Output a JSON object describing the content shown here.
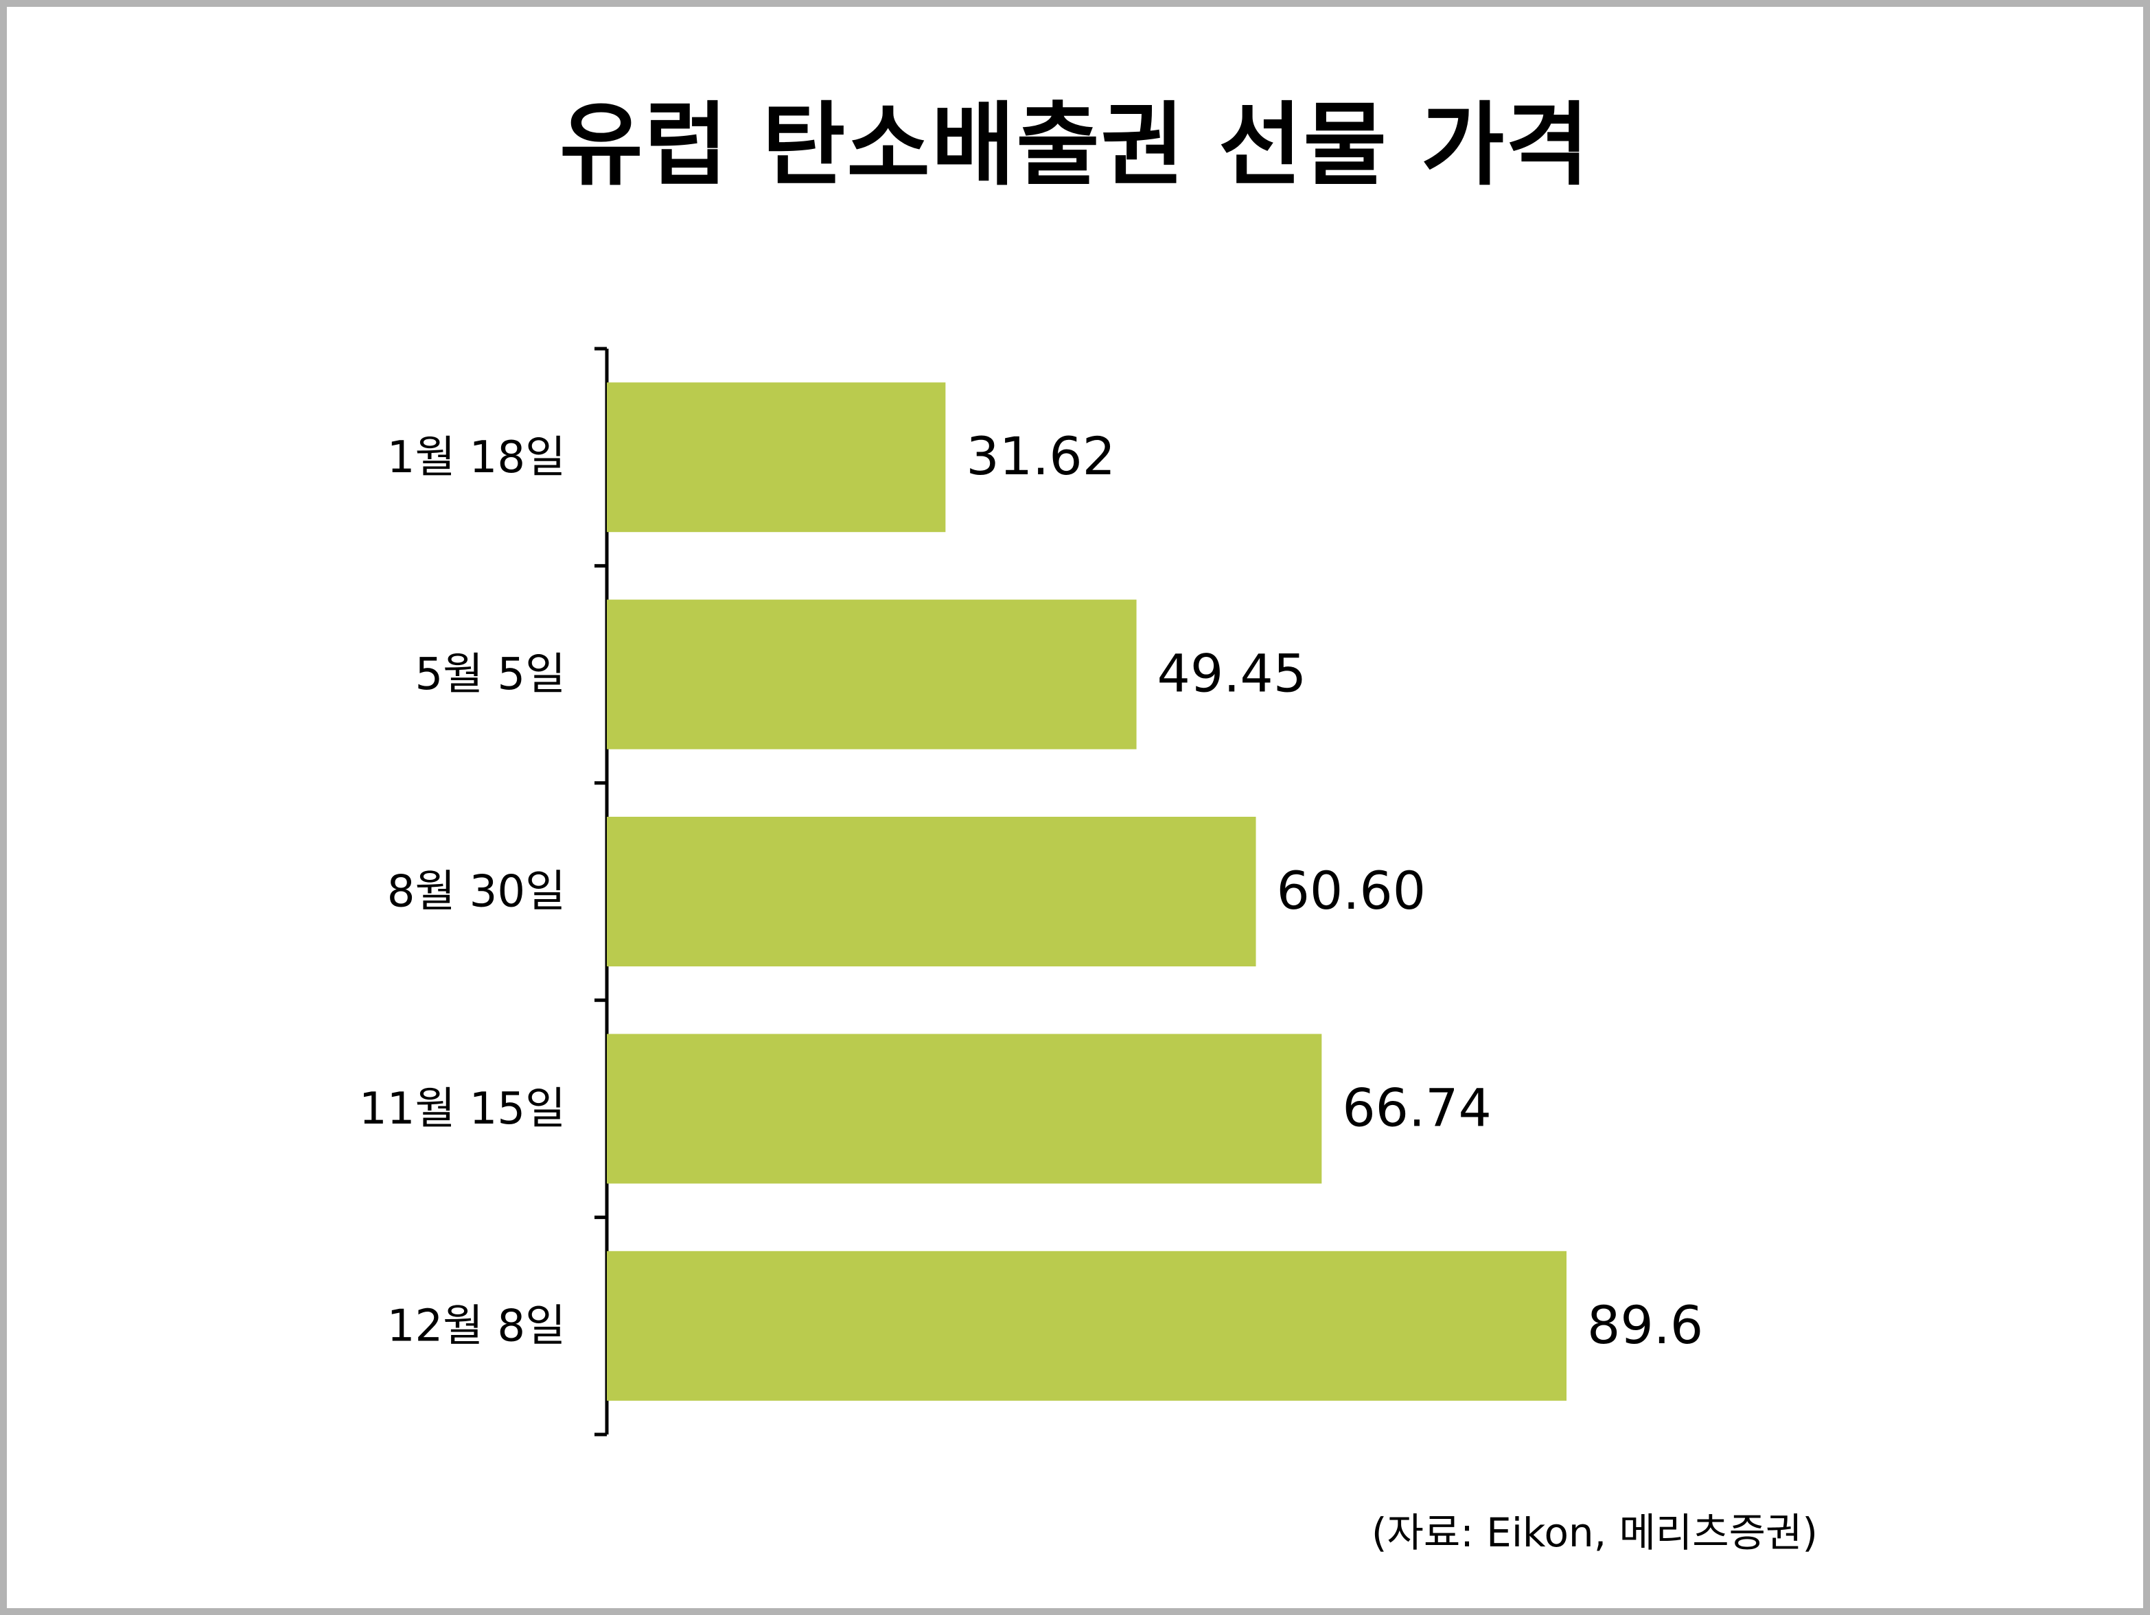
{
  "chart_data": {
    "type": "bar",
    "orientation": "horizontal",
    "title": "유럽 탄소배출권 선물 가격",
    "categories": [
      "1월 18일",
      "5월 5일",
      "8월 30일",
      "11월 15일",
      "12월 8일"
    ],
    "values": [
      31.62,
      49.45,
      60.6,
      66.74,
      89.6
    ],
    "value_labels": [
      "31.62",
      "49.45",
      "60.60",
      "66.74",
      "89.6"
    ],
    "xlabel": "",
    "ylabel": "",
    "xlim": [
      0,
      100
    ],
    "grid": false,
    "legend": "none",
    "bar_color": "#bacb4e",
    "source": "(자료: Eikon, 메리츠증권)"
  }
}
